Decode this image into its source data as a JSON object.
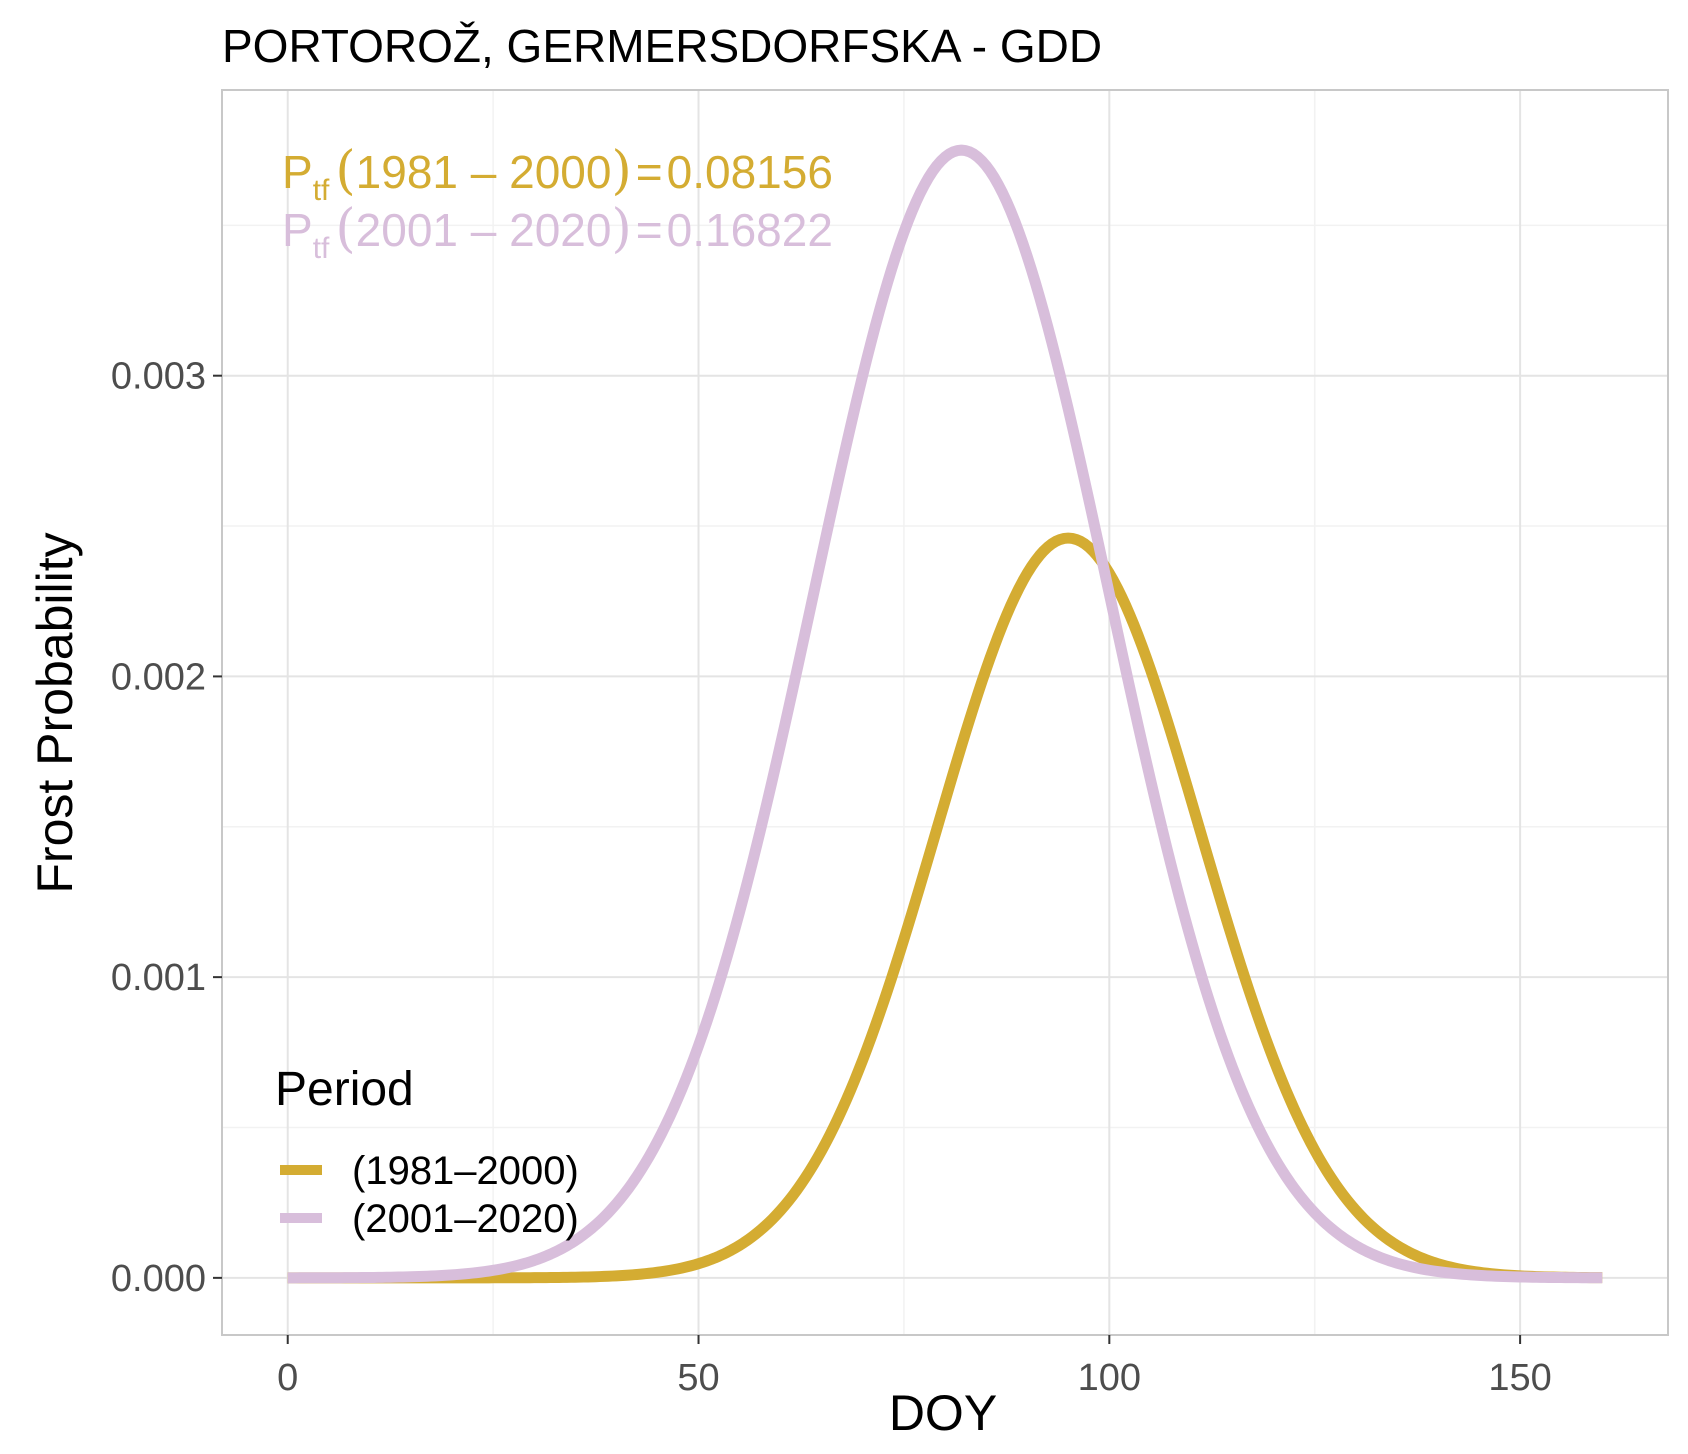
{
  "chart_data": {
    "type": "line",
    "title": "PORTOROŽ, GERMERSDORFSKA - GDD",
    "xlabel": "DOY",
    "ylabel": "Frost Probability",
    "xlim": [
      -8,
      168
    ],
    "ylim": [
      -0.00019,
      0.00395
    ],
    "x_ticks": [
      0,
      50,
      100,
      150
    ],
    "x_tick_labels": [
      "0",
      "50",
      "100",
      "150"
    ],
    "x_minor_ticks": [
      25,
      75,
      125
    ],
    "y_ticks": [
      0.0,
      0.001,
      0.002,
      0.003
    ],
    "y_tick_labels": [
      "0.000",
      "0.001",
      "0.002",
      "0.003"
    ],
    "y_minor_ticks": [
      0.0005,
      0.0015,
      0.0025,
      0.0035
    ],
    "grid": true,
    "legend": {
      "title": "Period",
      "placement": "bottom-left inside plot"
    },
    "series": [
      {
        "name": "(1981–2000)",
        "color": "#D4AC32",
        "distribution": "normal-shaped curve",
        "peak_x": 95,
        "peak_y": 0.00246,
        "spread_sd": 16,
        "x_range": [
          0,
          160
        ]
      },
      {
        "name": "(2001–2020)",
        "color": "#D8BEDB",
        "distribution": "normal-shaped curve",
        "peak_x": 82,
        "peak_y": 0.00375,
        "spread_sd": 18,
        "x_range": [
          0,
          160
        ]
      }
    ],
    "annotations": [
      {
        "prefix": "P",
        "subscript": "tf",
        "period": "1981 – 2000",
        "equals": "=",
        "value": "0.08156",
        "color": "#D4AC32"
      },
      {
        "prefix": "P",
        "subscript": "tf",
        "period": "2001 – 2020",
        "equals": "=",
        "value": "0.16822",
        "color": "#D8BEDB"
      }
    ],
    "colors": {
      "panel_border": "#c8c8c8",
      "grid_major": "#e4e4e4",
      "grid_minor": "#f2f2f2",
      "tick_mark": "#333333"
    }
  }
}
